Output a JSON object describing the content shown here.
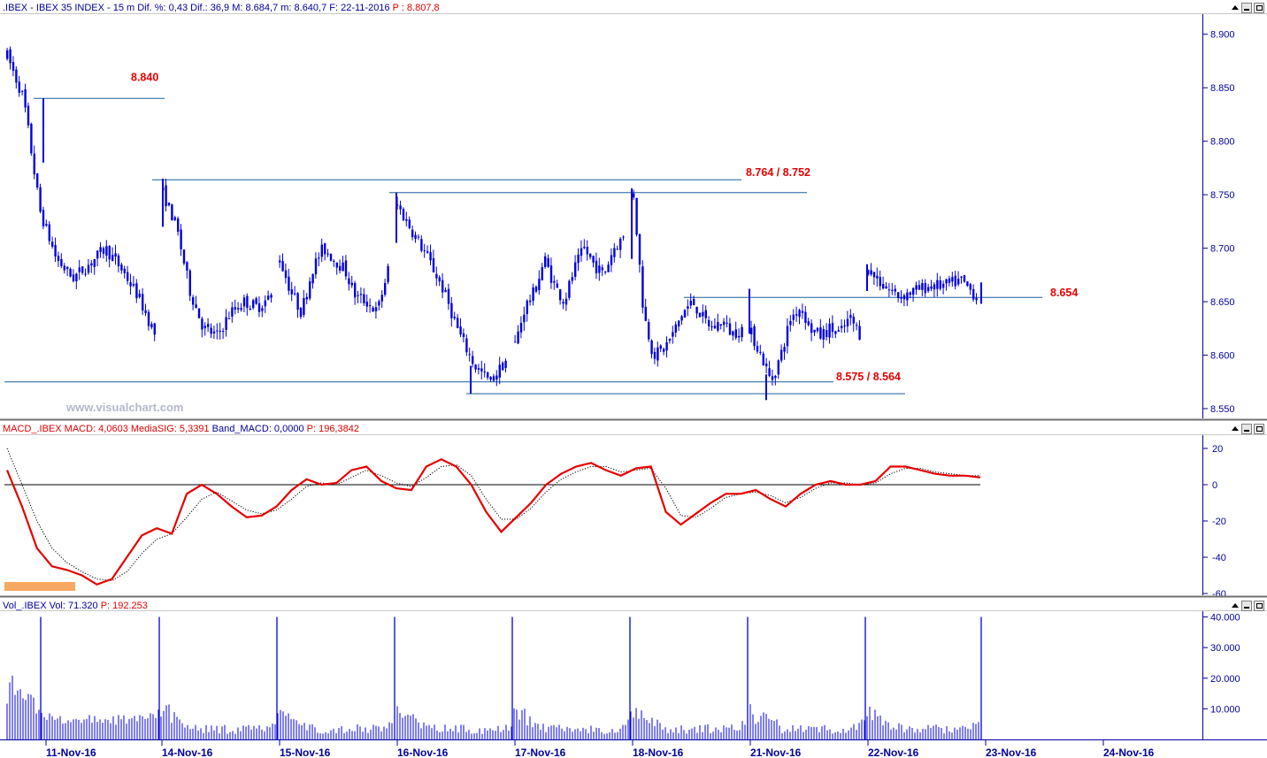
{
  "panels": {
    "price": {
      "header_parts": [
        {
          "text": ".IBEX - IBEX 35 INDEX -  15 m  Dif. %: 0,43  Dif.: 36,9  M: 8.684,7  m: 8.640,7  F: 22-11-2016",
          "color": "#00009c"
        },
        {
          "text": "  P : 8.807,8",
          "color": "#e60000"
        }
      ],
      "watermark": "www.visualchart.com"
    },
    "macd": {
      "header_parts": [
        {
          "text": "MACD_.IBEX  MACD: 4,0603  MediaSIG: 5,3391",
          "color": "#e60000"
        },
        {
          "text": "  Band_MACD: 0,0000",
          "color": "#00009c"
        },
        {
          "text": "  P: 196,3842",
          "color": "#e60000"
        }
      ]
    },
    "volume": {
      "header_parts": [
        {
          "text": "Vol_.IBEX  Vol: 71.320",
          "color": "#00009c"
        },
        {
          "text": "  P: 192.253",
          "color": "#e60000"
        }
      ]
    }
  },
  "window_controls": {
    "scroll_icon": "scroll-up-arrow-icon",
    "minimize_icon": "minimize-icon",
    "restore_icon": "restore-icon"
  },
  "colors": {
    "candles": "#0000e0",
    "macd_line": "#e60000",
    "signal_line": "#000000",
    "annotation": "#e60000",
    "axis": "#00009c",
    "support_resistance": "#1a5f9c",
    "highlight_bar": "#f7a863"
  },
  "chart_data": [
    {
      "type": "candlestick",
      "title": ".IBEX - IBEX 35 INDEX - 15 m",
      "y_axis_ticks": [
        "8.550",
        "8.600",
        "8.650",
        "8.700",
        "8.750",
        "8.800",
        "8.850",
        "8.900"
      ],
      "ylim": [
        8543,
        8917
      ],
      "x_dates": [
        "11-Nov-16",
        "14-Nov-16",
        "15-Nov-16",
        "16-Nov-16",
        "17-Nov-16",
        "18-Nov-16",
        "21-Nov-16",
        "22-Nov-16",
        "23-Nov-16",
        "24-Nov-16"
      ],
      "sessions": [
        {
          "date": "11-Nov-16",
          "path": [
            8880,
            8840,
            8735,
            8690,
            8672,
            8685,
            8700,
            8680,
            8655,
            8620
          ]
        },
        {
          "date": "14-Nov-16",
          "path": [
            8752,
            8720,
            8660,
            8625,
            8618,
            8640,
            8650,
            8645,
            8655
          ]
        },
        {
          "date": "15-Nov-16",
          "path": [
            8690,
            8660,
            8640,
            8680,
            8700,
            8690,
            8680,
            8655,
            8650,
            8640,
            8680
          ]
        },
        {
          "date": "16-Nov-16",
          "path": [
            8740,
            8715,
            8690,
            8660,
            8620,
            8590,
            8575,
            8595
          ]
        },
        {
          "date": "17-Nov-16",
          "path": [
            8610,
            8645,
            8660,
            8690,
            8665,
            8650,
            8680,
            8700,
            8685,
            8675,
            8700,
            8710
          ]
        },
        {
          "date": "18-Nov-16",
          "path": [
            8750,
            8640,
            8600,
            8605,
            8620,
            8640,
            8650,
            8635,
            8625,
            8632,
            8620,
            8625
          ]
        },
        {
          "date": "21-Nov-16",
          "path": [
            8620,
            8600,
            8575,
            8600,
            8635,
            8645,
            8625,
            8618,
            8625,
            8620,
            8635,
            8620
          ]
        },
        {
          "date": "22-Nov-16",
          "path": [
            8680,
            8665,
            8655,
            8660,
            8665,
            8665,
            8670,
            8655
          ]
        }
      ],
      "horizontal_levels": [
        {
          "label": "8.840",
          "value": 8840
        },
        {
          "label": "8.764 / 8.752",
          "values": [
            8764,
            8752
          ]
        },
        {
          "label": "8.654",
          "value": 8654
        },
        {
          "label": "8.575 / 8.564",
          "values": [
            8575,
            8564
          ]
        }
      ]
    },
    {
      "type": "line",
      "title": "MACD_.IBEX",
      "y_axis_ticks": [
        "20",
        "0",
        "-20",
        "-40",
        "-60"
      ],
      "ylim": [
        -65,
        25
      ],
      "zero_line": 0,
      "series": [
        {
          "name": "MACD",
          "color": "#e60000",
          "values": [
            8,
            -12,
            -35,
            -45,
            -47,
            -50,
            -55,
            -52,
            -40,
            -28,
            -24,
            -27,
            -5,
            0,
            -5,
            -12,
            -18,
            -17,
            -12,
            -3,
            3,
            0,
            1,
            8,
            10,
            2,
            -2,
            -3,
            10,
            14,
            10,
            0,
            -15,
            -26,
            -18,
            -10,
            0,
            6,
            10,
            12,
            8,
            5,
            9,
            10,
            -15,
            -22,
            -16,
            -10,
            -5,
            -5,
            -3,
            -8,
            -12,
            -5,
            0,
            2,
            0,
            0,
            2,
            10,
            10,
            8,
            6,
            5,
            5,
            4
          ]
        },
        {
          "name": "MediaSIG",
          "color": "#000000",
          "values": [
            20,
            0,
            -20,
            -35,
            -43,
            -48,
            -52,
            -53,
            -48,
            -38,
            -30,
            -27,
            -18,
            -8,
            -4,
            -9,
            -14,
            -16,
            -14,
            -8,
            -1,
            1,
            0,
            4,
            8,
            5,
            1,
            -1,
            4,
            10,
            11,
            5,
            -8,
            -19,
            -19,
            -13,
            -4,
            3,
            7,
            10,
            10,
            7,
            8,
            9,
            -2,
            -17,
            -18,
            -13,
            -7,
            -5,
            -4,
            -6,
            -10,
            -7,
            -2,
            1,
            1,
            0,
            1,
            6,
            9,
            9,
            7,
            6,
            5,
            5
          ]
        }
      ]
    },
    {
      "type": "bar",
      "title": "Vol_.IBEX",
      "y_axis_ticks": [
        "40.000",
        "30.000",
        "20.000",
        "10.000"
      ],
      "ylim": [
        0,
        41500
      ],
      "spike_values": [
        40000,
        40000,
        40000,
        40000,
        40000,
        40000,
        40000,
        40000,
        40000
      ]
    }
  ]
}
